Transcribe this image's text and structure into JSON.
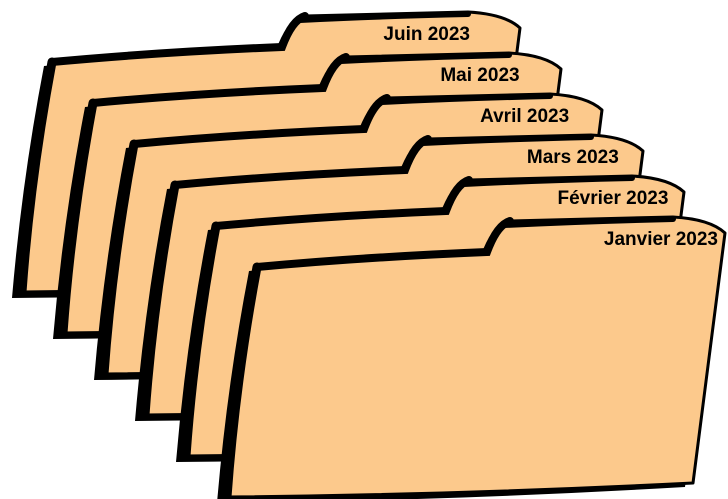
{
  "folders": [
    {
      "label": "Juin 2023"
    },
    {
      "label": "Mai 2023"
    },
    {
      "label": "Avril 2023"
    },
    {
      "label": "Mars 2023"
    },
    {
      "label": "Février 2023"
    },
    {
      "label": "Janvier 2023"
    }
  ]
}
